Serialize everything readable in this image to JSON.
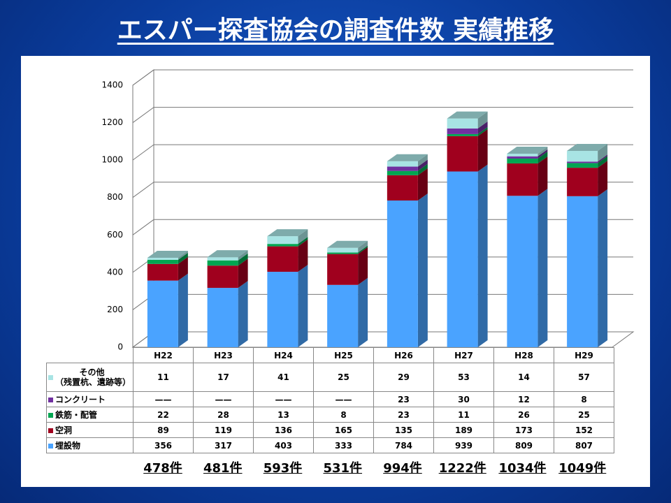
{
  "chart_data": {
    "type": "bar3d_stacked",
    "title": "エスパー探査協会の調査件数 実績推移",
    "categories": [
      "H22",
      "H23",
      "H24",
      "H25",
      "H26",
      "H27",
      "H28",
      "H29"
    ],
    "ylim": [
      0,
      1400
    ],
    "yticks": [
      0,
      200,
      400,
      600,
      800,
      1000,
      1200,
      1400
    ],
    "grid": true,
    "series": [
      {
        "name": "埋設物",
        "color": "#4aa3ff",
        "values": [
          356,
          317,
          403,
          333,
          784,
          939,
          809,
          807
        ]
      },
      {
        "name": "空洞",
        "color": "#a0001e",
        "values": [
          89,
          119,
          136,
          165,
          135,
          189,
          173,
          152
        ]
      },
      {
        "name": "鉄筋・配管",
        "color": "#00a651",
        "values": [
          22,
          28,
          13,
          8,
          23,
          11,
          26,
          25
        ]
      },
      {
        "name": "コンクリート",
        "color": "#7030a0",
        "values": [
          null,
          null,
          null,
          null,
          23,
          30,
          12,
          8
        ],
        "value_labels": [
          "——",
          "——",
          "——",
          "——",
          "23",
          "30",
          "12",
          "8"
        ]
      },
      {
        "name": "その他\n（残置杭、遺跡等）",
        "color": "#a8e4e4",
        "values": [
          11,
          17,
          41,
          25,
          29,
          53,
          14,
          57
        ]
      }
    ],
    "total_labels": [
      "478件",
      "481件",
      "593件",
      "531件",
      "994件",
      "1222件",
      "1034件",
      "1049件"
    ]
  }
}
